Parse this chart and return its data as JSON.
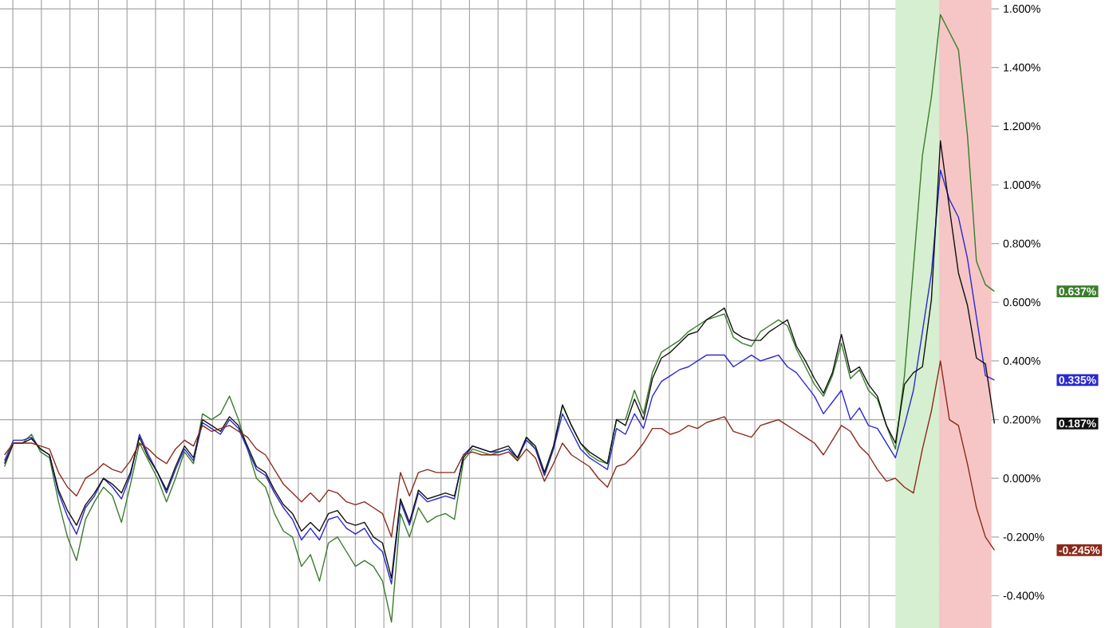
{
  "chart_data": {
    "type": "line",
    "categories": [
      null,
      null,
      null,
      null,
      null,
      null,
      null,
      null,
      null,
      null,
      null,
      null,
      null,
      null,
      null,
      null,
      null,
      null,
      null,
      null,
      null,
      null,
      null,
      null,
      null,
      null,
      null,
      null,
      null,
      null,
      null,
      null,
      null,
      null,
      null,
      null,
      null,
      null,
      null,
      null,
      null,
      null,
      null,
      null,
      null,
      null,
      null,
      null,
      null,
      null,
      null,
      null,
      null,
      null,
      null,
      null,
      null,
      null,
      null,
      null,
      null,
      null,
      null,
      null,
      null,
      null,
      null,
      null,
      null,
      null,
      null,
      null,
      null,
      null,
      null,
      null,
      null,
      null,
      null,
      null,
      null,
      null,
      null,
      null,
      null,
      null,
      null,
      null,
      null,
      null,
      null,
      null,
      null,
      null,
      null,
      null,
      null,
      null,
      null,
      null,
      null,
      null,
      null,
      null,
      null,
      null,
      null,
      null,
      null,
      null,
      null
    ],
    "ylim": [
      -0.51,
      1.63
    ],
    "yticks": [
      {
        "value": -0.4,
        "label": "-0.400%"
      },
      {
        "value": -0.2,
        "label": "-0.200%"
      },
      {
        "value": 0,
        "label": "0.000%"
      },
      {
        "value": 0.2,
        "label": "0.200%"
      },
      {
        "value": 0.4,
        "label": "0.400%"
      },
      {
        "value": 0.6,
        "label": "0.600%"
      },
      {
        "value": 0.8,
        "label": "0.800%"
      },
      {
        "value": 1.0,
        "label": "1.000%"
      },
      {
        "value": 1.2,
        "label": "1.200%"
      },
      {
        "value": 1.4,
        "label": "1.400%"
      },
      {
        "value": 1.6,
        "label": "1.600%"
      }
    ],
    "tick_labels": "y",
    "grid": true,
    "series": [
      {
        "color": "#3a7d2c",
        "values": [
          0.04,
          0.12,
          0.12,
          0.15,
          0.09,
          0.07,
          -0.08,
          -0.2,
          -0.28,
          -0.14,
          -0.08,
          -0.03,
          -0.06,
          -0.15,
          -0.02,
          0.12,
          0.06,
          0,
          -0.08,
          0,
          0.09,
          0.05,
          0.22,
          0.2,
          0.22,
          0.28,
          0.2,
          0.1,
          0,
          -0.03,
          -0.12,
          -0.18,
          -0.2,
          -0.3,
          -0.26,
          -0.35,
          -0.22,
          -0.2,
          -0.25,
          -0.3,
          -0.28,
          -0.3,
          -0.35,
          -0.49,
          -0.12,
          -0.2,
          -0.1,
          -0.15,
          -0.13,
          -0.12,
          -0.14,
          0.06,
          0.1,
          0.09,
          0.08,
          0.09,
          0.1,
          0.06,
          0.14,
          0.1,
          0.01,
          0.1,
          0.25,
          0.18,
          0.12,
          0.08,
          0.06,
          0.05,
          0.2,
          0.2,
          0.3,
          0.22,
          0.36,
          0.43,
          0.45,
          0.47,
          0.5,
          0.52,
          0.54,
          0.55,
          0.56,
          0.48,
          0.46,
          0.45,
          0.5,
          0.52,
          0.54,
          0.52,
          0.44,
          0.38,
          0.32,
          0.28,
          0.35,
          0.46,
          0.34,
          0.37,
          0.3,
          0.27,
          0.18,
          0.1,
          0.35,
          0.72,
          1.1,
          1.3,
          1.58,
          1.52,
          1.46,
          1.17,
          0.74,
          0.66,
          0.637
        ]
      },
      {
        "color": "#2a2ad0",
        "values": [
          0.06,
          0.13,
          0.13,
          0.14,
          0.1,
          0.08,
          -0.05,
          -0.13,
          -0.19,
          -0.1,
          -0.06,
          0,
          -0.03,
          -0.07,
          0.01,
          0.15,
          0.08,
          0.02,
          -0.05,
          0.03,
          0.1,
          0.06,
          0.19,
          0.17,
          0.15,
          0.2,
          0.17,
          0.1,
          0.03,
          0.01,
          -0.05,
          -0.1,
          -0.14,
          -0.21,
          -0.17,
          -0.21,
          -0.14,
          -0.13,
          -0.17,
          -0.19,
          -0.17,
          -0.22,
          -0.25,
          -0.36,
          -0.08,
          -0.16,
          -0.05,
          -0.08,
          -0.07,
          -0.06,
          -0.07,
          0.08,
          0.11,
          0.1,
          0.09,
          0.09,
          0.1,
          0.07,
          0.13,
          0.1,
          0.01,
          0.1,
          0.22,
          0.16,
          0.1,
          0.07,
          0.05,
          0.03,
          0.17,
          0.15,
          0.22,
          0.17,
          0.28,
          0.33,
          0.35,
          0.37,
          0.38,
          0.4,
          0.42,
          0.42,
          0.42,
          0.38,
          0.4,
          0.42,
          0.4,
          0.41,
          0.42,
          0.38,
          0.36,
          0.32,
          0.28,
          0.22,
          0.26,
          0.3,
          0.2,
          0.24,
          0.18,
          0.17,
          0.12,
          0.07,
          0.18,
          0.3,
          0.5,
          0.7,
          1.05,
          0.95,
          0.89,
          0.75,
          0.55,
          0.35,
          0.335
        ]
      },
      {
        "color": "#111111",
        "values": [
          0.05,
          0.12,
          0.12,
          0.135,
          0.1,
          0.08,
          -0.04,
          -0.11,
          -0.16,
          -0.09,
          -0.05,
          0,
          -0.02,
          -0.05,
          0.02,
          0.14,
          0.07,
          0.02,
          -0.04,
          0.04,
          0.11,
          0.07,
          0.2,
          0.18,
          0.16,
          0.21,
          0.18,
          0.11,
          0.04,
          0.02,
          -0.04,
          -0.09,
          -0.12,
          -0.18,
          -0.15,
          -0.18,
          -0.12,
          -0.11,
          -0.15,
          -0.16,
          -0.15,
          -0.2,
          -0.22,
          -0.34,
          -0.07,
          -0.15,
          -0.04,
          -0.07,
          -0.06,
          -0.05,
          -0.06,
          0.07,
          0.11,
          0.1,
          0.09,
          0.1,
          0.11,
          0.07,
          0.14,
          0.11,
          0.02,
          0.11,
          0.25,
          0.18,
          0.12,
          0.09,
          0.07,
          0.05,
          0.2,
          0.18,
          0.27,
          0.2,
          0.34,
          0.41,
          0.43,
          0.46,
          0.49,
          0.5,
          0.54,
          0.56,
          0.58,
          0.5,
          0.48,
          0.47,
          0.47,
          0.5,
          0.52,
          0.54,
          0.45,
          0.4,
          0.34,
          0.29,
          0.36,
          0.49,
          0.36,
          0.38,
          0.32,
          0.28,
          0.18,
          0.12,
          0.32,
          0.36,
          0.38,
          0.61,
          1.15,
          0.92,
          0.7,
          0.59,
          0.41,
          0.39,
          0.187
        ]
      },
      {
        "color": "#8b2a1a",
        "values": [
          0.08,
          0.12,
          0.12,
          0.12,
          0.11,
          0.1,
          0.02,
          -0.03,
          -0.06,
          0,
          0.02,
          0.05,
          0.03,
          0.02,
          0.06,
          0.12,
          0.1,
          0.07,
          0.05,
          0.1,
          0.13,
          0.11,
          0.18,
          0.16,
          0.17,
          0.18,
          0.16,
          0.14,
          0.1,
          0.08,
          0.03,
          -0.02,
          -0.05,
          -0.08,
          -0.05,
          -0.08,
          -0.04,
          -0.05,
          -0.08,
          -0.09,
          -0.08,
          -0.1,
          -0.12,
          -0.2,
          0.02,
          -0.06,
          0.02,
          0.03,
          0.02,
          0.02,
          0.02,
          0.08,
          0.09,
          0.08,
          0.08,
          0.08,
          0.09,
          0.06,
          0.1,
          0.07,
          -0.01,
          0.05,
          0.12,
          0.08,
          0.06,
          0.04,
          0,
          -0.03,
          0.04,
          0.05,
          0.08,
          0.12,
          0.17,
          0.17,
          0.15,
          0.16,
          0.18,
          0.17,
          0.19,
          0.2,
          0.21,
          0.16,
          0.15,
          0.14,
          0.18,
          0.19,
          0.2,
          0.18,
          0.16,
          0.14,
          0.12,
          0.08,
          0.13,
          0.18,
          0.16,
          0.11,
          0.08,
          0.03,
          -0.01,
          0,
          -0.03,
          -0.05,
          0.1,
          0.23,
          0.4,
          0.2,
          0.18,
          0.05,
          -0.1,
          -0.2,
          -0.245
        ]
      }
    ],
    "annotations": [
      "0.637%",
      "0.335%",
      "0.187%",
      "-0.245%"
    ]
  }
}
